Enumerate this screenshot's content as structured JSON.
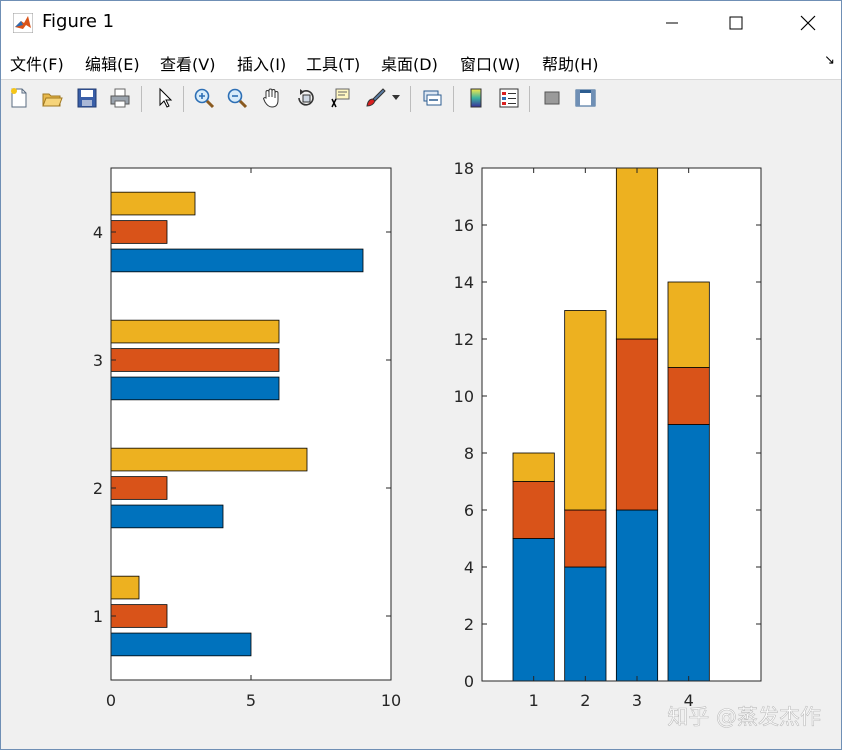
{
  "window": {
    "title": "Figure 1",
    "watermark": "知乎 @蒸发杰作"
  },
  "menu": [
    {
      "label": "文件(F)"
    },
    {
      "label": "编辑(E)"
    },
    {
      "label": "查看(V)"
    },
    {
      "label": "插入(I)"
    },
    {
      "label": "工具(T)"
    },
    {
      "label": "桌面(D)"
    },
    {
      "label": "窗口(W)"
    },
    {
      "label": "帮助(H)"
    }
  ],
  "toolbar": [
    {
      "icon": "new-figure-icon"
    },
    {
      "icon": "open-file-icon"
    },
    {
      "icon": "save-icon"
    },
    {
      "icon": "print-icon"
    },
    {
      "icon": "edit-plot-arrow-icon"
    },
    {
      "icon": "zoom-in-icon"
    },
    {
      "icon": "zoom-out-icon"
    },
    {
      "icon": "pan-hand-icon"
    },
    {
      "icon": "rotate-3d-icon"
    },
    {
      "icon": "data-cursor-icon"
    },
    {
      "icon": "brush-icon"
    },
    {
      "icon": "link-plot-icon"
    },
    {
      "icon": "colorbar-icon"
    },
    {
      "icon": "legend-icon"
    },
    {
      "icon": "hide-plot-tools-icon"
    },
    {
      "icon": "show-plot-tools-icon"
    }
  ],
  "colors": {
    "series1": "#0072bd",
    "series2": "#d95319",
    "series3": "#edb120"
  },
  "chart_data": [
    {
      "type": "bar",
      "orientation": "horizontal",
      "grouped": true,
      "categories": [
        "1",
        "2",
        "3",
        "4"
      ],
      "series": [
        {
          "values": [
            5,
            4,
            6,
            9
          ]
        },
        {
          "values": [
            2,
            2,
            6,
            2
          ]
        },
        {
          "values": [
            1,
            7,
            6,
            3
          ]
        }
      ],
      "xlim": [
        0,
        10
      ],
      "xticks": [
        "0",
        "5",
        "10"
      ],
      "yticks": [
        "1",
        "2",
        "3",
        "4"
      ],
      "grid": false
    },
    {
      "type": "bar",
      "stacked": true,
      "categories": [
        "1",
        "2",
        "3",
        "4"
      ],
      "series": [
        {
          "values": [
            5,
            4,
            6,
            9
          ]
        },
        {
          "values": [
            2,
            2,
            6,
            2
          ]
        },
        {
          "values": [
            1,
            7,
            6,
            3
          ]
        }
      ],
      "ylim": [
        0,
        18
      ],
      "yticks": [
        "0",
        "2",
        "4",
        "6",
        "8",
        "10",
        "12",
        "14",
        "16",
        "18"
      ],
      "xticks": [
        "1",
        "2",
        "3",
        "4"
      ],
      "grid": false
    }
  ]
}
